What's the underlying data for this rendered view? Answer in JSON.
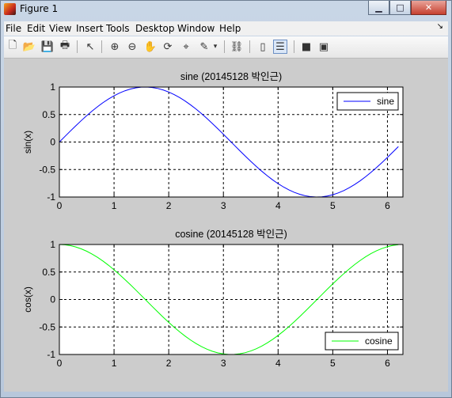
{
  "window": {
    "title": "Figure 1"
  },
  "menu": [
    "File",
    "Edit",
    "View",
    "Insert",
    "Tools",
    "Desktop",
    "Window",
    "Help"
  ],
  "menu_arrow": "↘",
  "toolbar": [
    "new-figure-icon",
    "open-file-icon",
    "save-icon",
    "print-icon",
    "pointer-icon",
    "zoom-in-icon",
    "zoom-out-icon",
    "pan-hand-icon",
    "rotate-3d-icon",
    "data-cursor-icon",
    "brush-icon",
    "link-plot-icon",
    "colorbar-icon",
    "legend-icon",
    "hide-plot-tools-icon",
    "show-plot-tools-icon"
  ],
  "colors": {
    "sine": "#0000ff",
    "cosine": "#00ff00",
    "canvas": "#cccccc"
  },
  "chart_data": [
    {
      "type": "line",
      "title": "sine (20145128 박인근)",
      "xlabel": "",
      "ylabel": "sin(x)",
      "xlim": [
        0,
        6.283
      ],
      "ylim": [
        -1,
        1
      ],
      "xticks": [
        "0",
        "1",
        "2",
        "3",
        "4",
        "5",
        "6"
      ],
      "yticks": [
        "-1",
        "-0.5",
        "0",
        "0.5",
        "1"
      ],
      "grid": true,
      "legend": "top-right",
      "function": "sin",
      "series": [
        {
          "name": "sine",
          "color": "#0000ff"
        }
      ]
    },
    {
      "type": "line",
      "title": "cosine (20145128 박인근)",
      "xlabel": "",
      "ylabel": "cos(x)",
      "xlim": [
        0,
        6.283
      ],
      "ylim": [
        -1,
        1
      ],
      "xticks": [
        "0",
        "1",
        "2",
        "3",
        "4",
        "5",
        "6"
      ],
      "yticks": [
        "-1",
        "-0.5",
        "0",
        "0.5",
        "1"
      ],
      "grid": true,
      "legend": "bottom-right",
      "function": "cos",
      "series": [
        {
          "name": "cosine",
          "color": "#00ff00"
        }
      ]
    }
  ]
}
